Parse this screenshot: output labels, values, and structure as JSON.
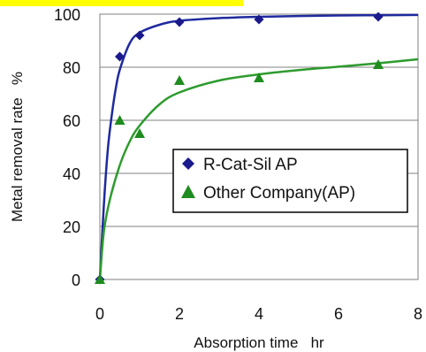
{
  "chart_data": {
    "type": "scatter",
    "title": "",
    "xlabel": "Absorption time   hr",
    "ylabel": "Metal removal rate   %",
    "xlim": [
      0,
      8
    ],
    "ylim": [
      0,
      100
    ],
    "x_ticks": [
      "0",
      "2",
      "4",
      "6",
      "8"
    ],
    "y_ticks": [
      "0",
      "20",
      "40",
      "60",
      "80",
      "100"
    ],
    "grid": "horizontal",
    "legend_position": "center-right",
    "banner_color": "#FFFF00",
    "series": [
      {
        "name": "R-Cat-Sil AP",
        "marker": "diamond",
        "color": "#1A1A8C",
        "line_color": "#1F2A9E",
        "points": [
          [
            0,
            0
          ],
          [
            0.5,
            84
          ],
          [
            1,
            92
          ],
          [
            2,
            97
          ],
          [
            4,
            98
          ],
          [
            7,
            99
          ]
        ],
        "fit_curve": [
          [
            0,
            0
          ],
          [
            0.1,
            28
          ],
          [
            0.2,
            49
          ],
          [
            0.3,
            62
          ],
          [
            0.4,
            72
          ],
          [
            0.5,
            79
          ],
          [
            0.75,
            89
          ],
          [
            1,
            93
          ],
          [
            1.5,
            96
          ],
          [
            2,
            97.5
          ],
          [
            3,
            98.5
          ],
          [
            4,
            99
          ],
          [
            5,
            99.3
          ],
          [
            6,
            99.5
          ],
          [
            7,
            99.6
          ],
          [
            8,
            99.7
          ]
        ]
      },
      {
        "name": "Other Company(AP)",
        "marker": "triangle",
        "color": "#1E8C1E",
        "line_color": "#2E9B2E",
        "points": [
          [
            0,
            0
          ],
          [
            0.5,
            60
          ],
          [
            1,
            55
          ],
          [
            2,
            75
          ],
          [
            4,
            76
          ],
          [
            7,
            81
          ]
        ],
        "fit_curve": [
          [
            0,
            0
          ],
          [
            0.1,
            18
          ],
          [
            0.25,
            30
          ],
          [
            0.5,
            43
          ],
          [
            0.75,
            52
          ],
          [
            1,
            58
          ],
          [
            1.5,
            66
          ],
          [
            2,
            70.5
          ],
          [
            3,
            75
          ],
          [
            4,
            77.3
          ],
          [
            5,
            78.9
          ],
          [
            6,
            80.2
          ],
          [
            7,
            81.5
          ],
          [
            8,
            83
          ]
        ]
      }
    ]
  }
}
